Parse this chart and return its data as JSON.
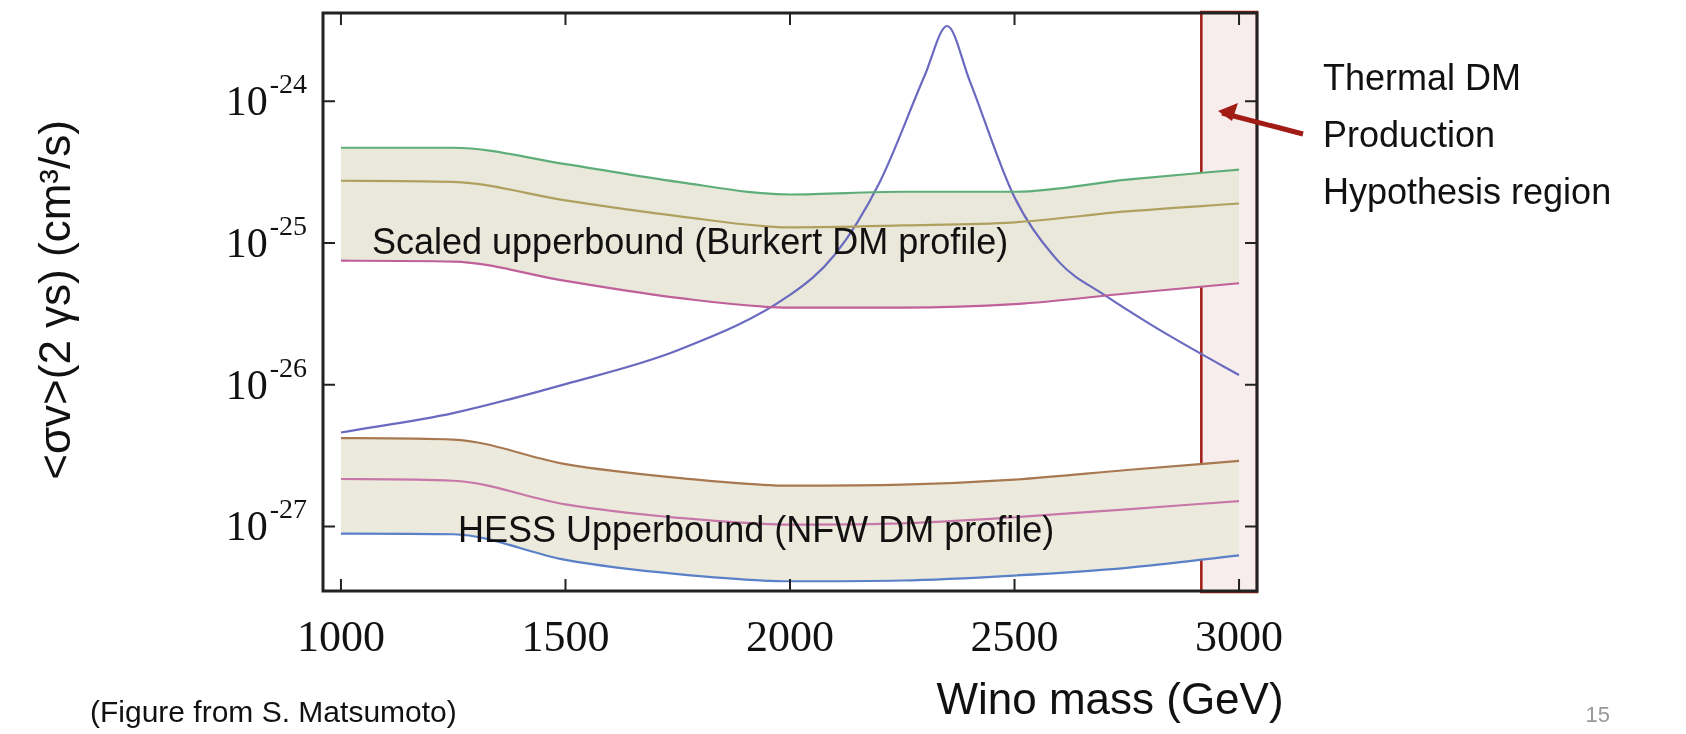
{
  "chart_data": {
    "type": "line",
    "xlabel": "Wino mass (GeV)",
    "ylabel": "<σv>(2 γs) (cm³/s)",
    "x": [
      1000,
      1250,
      1500,
      1750,
      2000,
      2250,
      2500,
      2750,
      3000
    ],
    "series": [
      {
        "color": "#5fae7a",
        "values": [
          4.7e-25,
          4.7e-25,
          3.6e-25,
          2.7e-25,
          2.2e-25,
          2.3e-25,
          2.3e-25,
          2.8e-25,
          3.3e-25
        ]
      },
      {
        "color": "#b0a060",
        "values": [
          2.75e-25,
          2.7e-25,
          2e-25,
          1.55e-25,
          1.29e-25,
          1.33e-25,
          1.4e-25,
          1.67e-25,
          1.9e-25
        ],
        "lower": [
          7.5e-26,
          7.4e-26,
          5.4e-26,
          4.1e-26,
          3.5e-26,
          3.5e-26,
          3.7e-26,
          4.4e-26,
          5.2e-26
        ],
        "upper": [
          4.7e-25,
          4.7e-25,
          3.6e-25,
          2.7e-25,
          2.2e-25,
          2.3e-25,
          2.3e-25,
          2.8e-25,
          3.3e-25
        ]
      },
      {
        "color": "#c0609a",
        "values": [
          7.5e-26,
          7.4e-26,
          5.4e-26,
          4.1e-26,
          3.5e-26,
          3.5e-26,
          3.7e-26,
          4.4e-26,
          5.2e-26
        ]
      },
      {
        "color": "#a87850",
        "values": [
          4.2e-27,
          4.1e-27,
          2.75e-27,
          2.2e-27,
          1.94e-27,
          1.97e-27,
          2.14e-27,
          2.5e-27,
          2.9e-27
        ]
      },
      {
        "color": "#c878a8",
        "values": [
          2.16e-27,
          2.1e-27,
          1.43e-27,
          1.15e-27,
          1.03e-27,
          1.05e-27,
          1.16e-27,
          1.32e-27,
          1.51e-27
        ],
        "lower": [
          8.9e-28,
          8.8e-28,
          5.8e-28,
          4.6e-28,
          4.1e-28,
          4.15e-28,
          4.5e-28,
          5.1e-28,
          6.25e-28
        ],
        "upper": [
          4.2e-27,
          4.1e-27,
          2.75e-27,
          2.2e-27,
          1.94e-27,
          1.97e-27,
          2.14e-27,
          2.5e-27,
          2.9e-27
        ]
      },
      {
        "color": "#5a80c8",
        "values": [
          8.9e-28,
          8.8e-28,
          5.8e-28,
          4.6e-28,
          4.1e-28,
          4.15e-28,
          4.5e-28,
          5.1e-28,
          6.25e-28
        ]
      },
      {
        "color": "#6a6ac0",
        "x": [
          1000,
          1250,
          1500,
          1750,
          2000,
          2100,
          2200,
          2300,
          2350,
          2400,
          2500,
          2600,
          2700,
          2800,
          2900,
          3000
        ],
        "values": [
          4.6e-27,
          6.3e-27,
          1.01e-26,
          1.75e-26,
          4.3e-26,
          8.3e-26,
          2.7e-25,
          1.52e-24,
          3.4e-24,
          1.4e-24,
          2.1e-25,
          7.3e-26,
          4.3e-26,
          2.7e-26,
          1.76e-26,
          1.17e-26
        ]
      }
    ],
    "xlim": [
      960,
      3040
    ],
    "xticks": [
      1000,
      1500,
      2000,
      2500,
      3000
    ],
    "log": "y",
    "ylim": [
      3.5e-28,
      4.2e-24
    ],
    "yticks": [
      {
        "value": 1e-24,
        "label": "10$^{-24}$"
      },
      {
        "value": 1e-25,
        "label": "10$^{-25}$"
      },
      {
        "value": 1e-26,
        "label": "10$^{-26}$"
      },
      {
        "value": 1e-27,
        "label": "10$^{-27}$"
      }
    ],
    "grid": false,
    "legend": false,
    "marker": "none",
    "line_style": "solid",
    "bands": [
      {
        "axis": "x",
        "from": 2916,
        "to": 3040,
        "label": "Thermal DM\nProduction\nHypothesis region",
        "color": "#a01c14"
      }
    ],
    "annotations": [
      "Scaled upperbound (Burkert DM profile)",
      "HESS Upperbound (NFW DM profile)",
      "(Figure from S. Matsumoto)",
      "15"
    ]
  }
}
